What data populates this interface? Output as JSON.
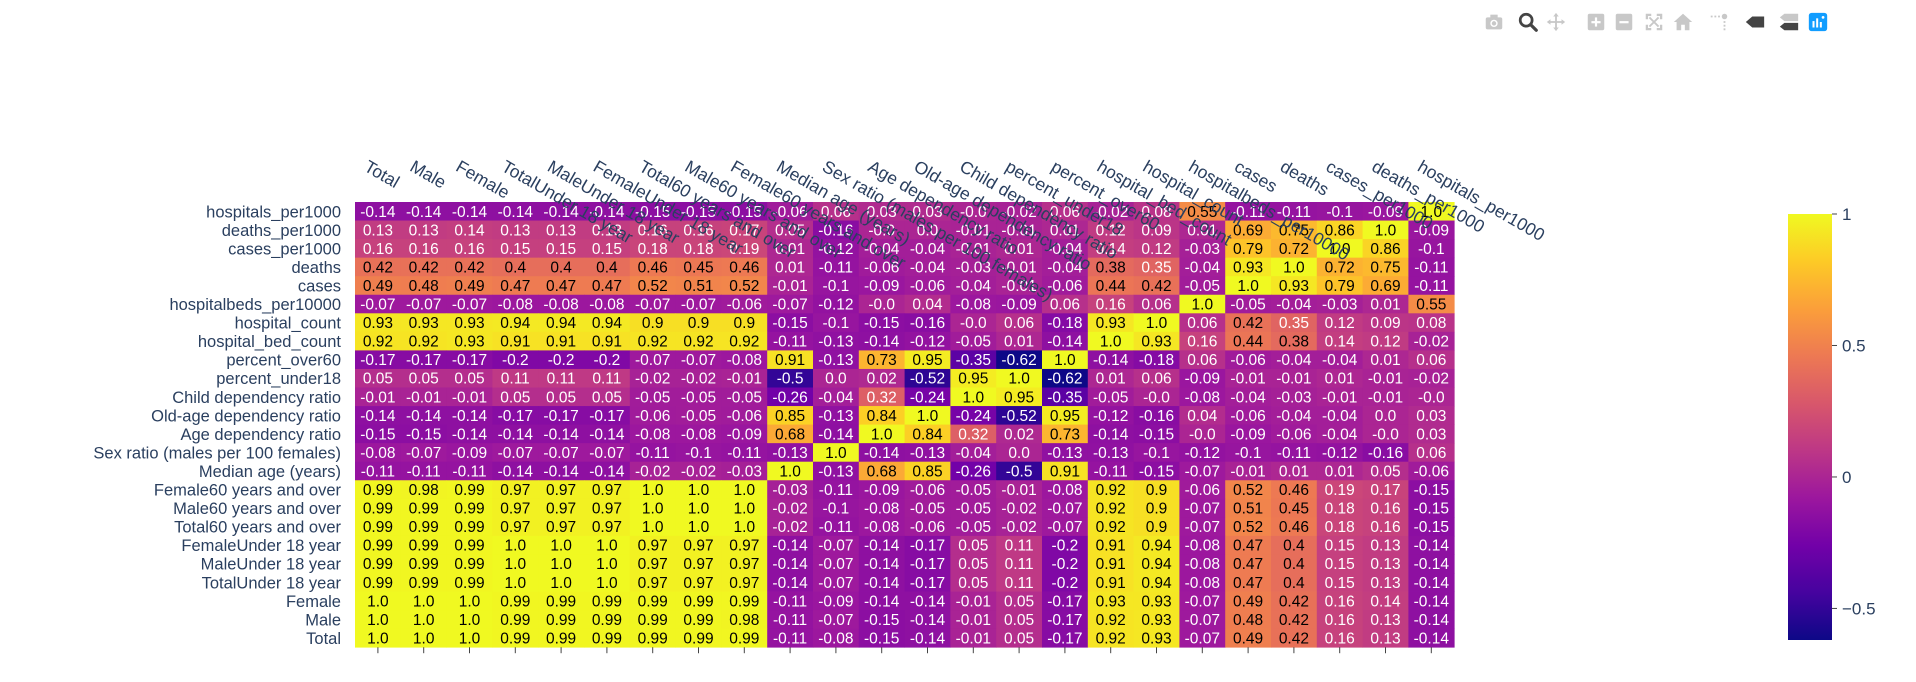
{
  "modebar": {
    "buttons": [
      {
        "name": "camera-icon",
        "title": "Download plot as a png"
      },
      {
        "name": "zoom-icon",
        "title": "Zoom"
      },
      {
        "name": "pan-icon",
        "title": "Pan"
      },
      {
        "name": "zoom-in-icon",
        "title": "Zoom in"
      },
      {
        "name": "zoom-out-icon",
        "title": "Zoom out"
      },
      {
        "name": "autoscale-icon",
        "title": "Autoscale"
      },
      {
        "name": "home-icon",
        "title": "Reset axes"
      },
      {
        "name": "spikelines-icon",
        "title": "Toggle Spike Lines"
      },
      {
        "name": "hover-closest-icon",
        "title": "Show closest data on hover"
      },
      {
        "name": "hover-compare-icon",
        "title": "Compare data on hover"
      },
      {
        "name": "plotly-logo-icon",
        "title": "Produced with Plotly"
      }
    ]
  },
  "chart_data": {
    "type": "heatmap",
    "title": "",
    "x_labels": [
      "Total",
      "Male",
      "Female",
      "TotalUnder 18 year",
      "MaleUnder 18 year",
      "FemaleUnder 18 year",
      "Total60 years and over",
      "Male60 years and over",
      "Female60 years and over",
      "Median age (years)",
      "Sex ratio (males per 100 females)",
      "Age dependency ratio",
      "Old-age dependency ratio",
      "Child dependency ratio",
      "percent_under18",
      "percent_over60",
      "hospital_bed_count",
      "hospital_count",
      "hospitalbeds_per10000",
      "cases",
      "deaths",
      "cases_per1000",
      "deaths_per1000",
      "hospitals_per1000"
    ],
    "y_labels": [
      "hospitals_per1000",
      "deaths_per1000",
      "cases_per1000",
      "deaths",
      "cases",
      "hospitalbeds_per10000",
      "hospital_count",
      "hospital_bed_count",
      "percent_over60",
      "percent_under18",
      "Child dependency ratio",
      "Old-age dependency ratio",
      "Age dependency ratio",
      "Sex ratio (males per 100 females)",
      "Median age (years)",
      "Female60 years and over",
      "Male60 years and over",
      "Total60 years and over",
      "FemaleUnder 18 year",
      "MaleUnder 18 year",
      "TotalUnder 18 year",
      "Female",
      "Male",
      "Total"
    ],
    "z": [
      [
        "-0.14",
        "-0.14",
        "-0.14",
        "-0.14",
        "-0.14",
        "-0.14",
        "-0.15",
        "-0.15",
        "-0.15",
        "-0.06",
        "0.06",
        "0.03",
        "0.03",
        "-0.0",
        "-0.02",
        "0.06",
        "-0.02",
        "0.08",
        "0.55",
        "-0.11",
        "-0.11",
        "-0.1",
        "-0.09",
        "1.0"
      ],
      [
        "0.13",
        "0.13",
        "0.14",
        "0.13",
        "0.13",
        "0.13",
        "0.16",
        "0.16",
        "0.17",
        "0.05",
        "-0.16",
        "-0.0",
        "0.0",
        "-0.01",
        "-0.01",
        "0.01",
        "0.12",
        "0.09",
        "0.01",
        "0.69",
        "0.75",
        "0.86",
        "1.0",
        "-0.09"
      ],
      [
        "0.16",
        "0.16",
        "0.16",
        "0.15",
        "0.15",
        "0.15",
        "0.18",
        "0.18",
        "0.19",
        "0.01",
        "-0.12",
        "-0.04",
        "-0.04",
        "-0.01",
        "0.01",
        "-0.04",
        "0.14",
        "0.12",
        "-0.03",
        "0.79",
        "0.72",
        "1.0",
        "0.86",
        "-0.1"
      ],
      [
        "0.42",
        "0.42",
        "0.42",
        "0.4",
        "0.4",
        "0.4",
        "0.46",
        "0.45",
        "0.46",
        "0.01",
        "-0.11",
        "-0.06",
        "-0.04",
        "-0.03",
        "-0.01",
        "-0.04",
        "0.38",
        "0.35",
        "-0.04",
        "0.93",
        "1.0",
        "0.72",
        "0.75",
        "-0.11"
      ],
      [
        "0.49",
        "0.48",
        "0.49",
        "0.47",
        "0.47",
        "0.47",
        "0.52",
        "0.51",
        "0.52",
        "-0.01",
        "-0.1",
        "-0.09",
        "-0.06",
        "-0.04",
        "-0.01",
        "-0.06",
        "0.44",
        "0.42",
        "-0.05",
        "1.0",
        "0.93",
        "0.79",
        "0.69",
        "-0.11"
      ],
      [
        "-0.07",
        "-0.07",
        "-0.07",
        "-0.08",
        "-0.08",
        "-0.08",
        "-0.07",
        "-0.07",
        "-0.06",
        "-0.07",
        "-0.12",
        "-0.0",
        "0.04",
        "-0.08",
        "-0.09",
        "0.06",
        "0.16",
        "0.06",
        "1.0",
        "-0.05",
        "-0.04",
        "-0.03",
        "0.01",
        "0.55"
      ],
      [
        "0.93",
        "0.93",
        "0.93",
        "0.94",
        "0.94",
        "0.94",
        "0.9",
        "0.9",
        "0.9",
        "-0.15",
        "-0.1",
        "-0.15",
        "-0.16",
        "-0.0",
        "0.06",
        "-0.18",
        "0.93",
        "1.0",
        "0.06",
        "0.42",
        "0.35",
        "0.12",
        "0.09",
        "0.08"
      ],
      [
        "0.92",
        "0.92",
        "0.93",
        "0.91",
        "0.91",
        "0.91",
        "0.92",
        "0.92",
        "0.92",
        "-0.11",
        "-0.13",
        "-0.14",
        "-0.12",
        "-0.05",
        "0.01",
        "-0.14",
        "1.0",
        "0.93",
        "0.16",
        "0.44",
        "0.38",
        "0.14",
        "0.12",
        "-0.02"
      ],
      [
        "-0.17",
        "-0.17",
        "-0.17",
        "-0.2",
        "-0.2",
        "-0.2",
        "-0.07",
        "-0.07",
        "-0.08",
        "0.91",
        "-0.13",
        "0.73",
        "0.95",
        "-0.35",
        "-0.62",
        "1.0",
        "-0.14",
        "-0.18",
        "0.06",
        "-0.06",
        "-0.04",
        "-0.04",
        "0.01",
        "0.06"
      ],
      [
        "0.05",
        "0.05",
        "0.05",
        "0.11",
        "0.11",
        "0.11",
        "-0.02",
        "-0.02",
        "-0.01",
        "-0.5",
        "0.0",
        "0.02",
        "-0.52",
        "0.95",
        "1.0",
        "-0.62",
        "0.01",
        "0.06",
        "-0.09",
        "-0.01",
        "-0.01",
        "0.01",
        "-0.01",
        "-0.02"
      ],
      [
        "-0.01",
        "-0.01",
        "-0.01",
        "0.05",
        "0.05",
        "0.05",
        "-0.05",
        "-0.05",
        "-0.05",
        "-0.26",
        "-0.04",
        "0.32",
        "-0.24",
        "1.0",
        "0.95",
        "-0.35",
        "-0.05",
        "-0.0",
        "-0.08",
        "-0.04",
        "-0.03",
        "-0.01",
        "-0.01",
        "-0.0"
      ],
      [
        "-0.14",
        "-0.14",
        "-0.14",
        "-0.17",
        "-0.17",
        "-0.17",
        "-0.06",
        "-0.05",
        "-0.06",
        "0.85",
        "-0.13",
        "0.84",
        "1.0",
        "-0.24",
        "-0.52",
        "0.95",
        "-0.12",
        "-0.16",
        "0.04",
        "-0.06",
        "-0.04",
        "-0.04",
        "0.0",
        "0.03"
      ],
      [
        "-0.15",
        "-0.15",
        "-0.14",
        "-0.14",
        "-0.14",
        "-0.14",
        "-0.08",
        "-0.08",
        "-0.09",
        "0.68",
        "-0.14",
        "1.0",
        "0.84",
        "0.32",
        "0.02",
        "0.73",
        "-0.14",
        "-0.15",
        "-0.0",
        "-0.09",
        "-0.06",
        "-0.04",
        "-0.0",
        "0.03"
      ],
      [
        "-0.08",
        "-0.07",
        "-0.09",
        "-0.07",
        "-0.07",
        "-0.07",
        "-0.11",
        "-0.1",
        "-0.11",
        "-0.13",
        "1.0",
        "-0.14",
        "-0.13",
        "-0.04",
        "0.0",
        "-0.13",
        "-0.13",
        "-0.1",
        "-0.12",
        "-0.1",
        "-0.11",
        "-0.12",
        "-0.16",
        "0.06"
      ],
      [
        "-0.11",
        "-0.11",
        "-0.11",
        "-0.14",
        "-0.14",
        "-0.14",
        "-0.02",
        "-0.02",
        "-0.03",
        "1.0",
        "-0.13",
        "0.68",
        "0.85",
        "-0.26",
        "-0.5",
        "0.91",
        "-0.11",
        "-0.15",
        "-0.07",
        "-0.01",
        "0.01",
        "0.01",
        "0.05",
        "-0.06"
      ],
      [
        "0.99",
        "0.98",
        "0.99",
        "0.97",
        "0.97",
        "0.97",
        "1.0",
        "1.0",
        "1.0",
        "-0.03",
        "-0.11",
        "-0.09",
        "-0.06",
        "-0.05",
        "-0.01",
        "-0.08",
        "0.92",
        "0.9",
        "-0.06",
        "0.52",
        "0.46",
        "0.19",
        "0.17",
        "-0.15"
      ],
      [
        "0.99",
        "0.99",
        "0.99",
        "0.97",
        "0.97",
        "0.97",
        "1.0",
        "1.0",
        "1.0",
        "-0.02",
        "-0.1",
        "-0.08",
        "-0.05",
        "-0.05",
        "-0.02",
        "-0.07",
        "0.92",
        "0.9",
        "-0.07",
        "0.51",
        "0.45",
        "0.18",
        "0.16",
        "-0.15"
      ],
      [
        "0.99",
        "0.99",
        "0.99",
        "0.97",
        "0.97",
        "0.97",
        "1.0",
        "1.0",
        "1.0",
        "-0.02",
        "-0.11",
        "-0.08",
        "-0.06",
        "-0.05",
        "-0.02",
        "-0.07",
        "0.92",
        "0.9",
        "-0.07",
        "0.52",
        "0.46",
        "0.18",
        "0.16",
        "-0.15"
      ],
      [
        "0.99",
        "0.99",
        "0.99",
        "1.0",
        "1.0",
        "1.0",
        "0.97",
        "0.97",
        "0.97",
        "-0.14",
        "-0.07",
        "-0.14",
        "-0.17",
        "0.05",
        "0.11",
        "-0.2",
        "0.91",
        "0.94",
        "-0.08",
        "0.47",
        "0.4",
        "0.15",
        "0.13",
        "-0.14"
      ],
      [
        "0.99",
        "0.99",
        "0.99",
        "1.0",
        "1.0",
        "1.0",
        "0.97",
        "0.97",
        "0.97",
        "-0.14",
        "-0.07",
        "-0.14",
        "-0.17",
        "0.05",
        "0.11",
        "-0.2",
        "0.91",
        "0.94",
        "-0.08",
        "0.47",
        "0.4",
        "0.15",
        "0.13",
        "-0.14"
      ],
      [
        "0.99",
        "0.99",
        "0.99",
        "1.0",
        "1.0",
        "1.0",
        "0.97",
        "0.97",
        "0.97",
        "-0.14",
        "-0.07",
        "-0.14",
        "-0.17",
        "0.05",
        "0.11",
        "-0.2",
        "0.91",
        "0.94",
        "-0.08",
        "0.47",
        "0.4",
        "0.15",
        "0.13",
        "-0.14"
      ],
      [
        "1.0",
        "1.0",
        "1.0",
        "0.99",
        "0.99",
        "0.99",
        "0.99",
        "0.99",
        "0.99",
        "-0.11",
        "-0.09",
        "-0.14",
        "-0.14",
        "-0.01",
        "0.05",
        "-0.17",
        "0.93",
        "0.93",
        "-0.07",
        "0.49",
        "0.42",
        "0.16",
        "0.14",
        "-0.14"
      ],
      [
        "1.0",
        "1.0",
        "1.0",
        "0.99",
        "0.99",
        "0.99",
        "0.99",
        "0.99",
        "0.98",
        "-0.11",
        "-0.07",
        "-0.15",
        "-0.14",
        "-0.01",
        "0.05",
        "-0.17",
        "0.92",
        "0.93",
        "-0.07",
        "0.48",
        "0.42",
        "0.16",
        "0.13",
        "-0.14"
      ],
      [
        "1.0",
        "1.0",
        "1.0",
        "0.99",
        "0.99",
        "0.99",
        "0.99",
        "0.99",
        "0.99",
        "-0.11",
        "-0.08",
        "-0.15",
        "-0.14",
        "-0.01",
        "0.05",
        "-0.17",
        "0.92",
        "0.93",
        "-0.07",
        "0.49",
        "0.42",
        "0.16",
        "0.13",
        "-0.14"
      ]
    ],
    "zmin": -0.62,
    "zmax": 1.0,
    "colorscale": [
      "#0d0887",
      "#46039f",
      "#7201a8",
      "#9c179e",
      "#bd3786",
      "#d8576b",
      "#ed7953",
      "#fb9f3a",
      "#fdca26",
      "#f0f921"
    ],
    "colorbar": {
      "tickvals": [
        1,
        0.5,
        0,
        -0.5
      ],
      "ticktext": [
        "1",
        "0.5",
        "0",
        "−0.5"
      ]
    },
    "cell_text_colors": {
      "dark": "#000000",
      "light": "#ffffff"
    },
    "plot_bgcolor": "#e5ecf6",
    "label_color": "#2a3f5f"
  }
}
